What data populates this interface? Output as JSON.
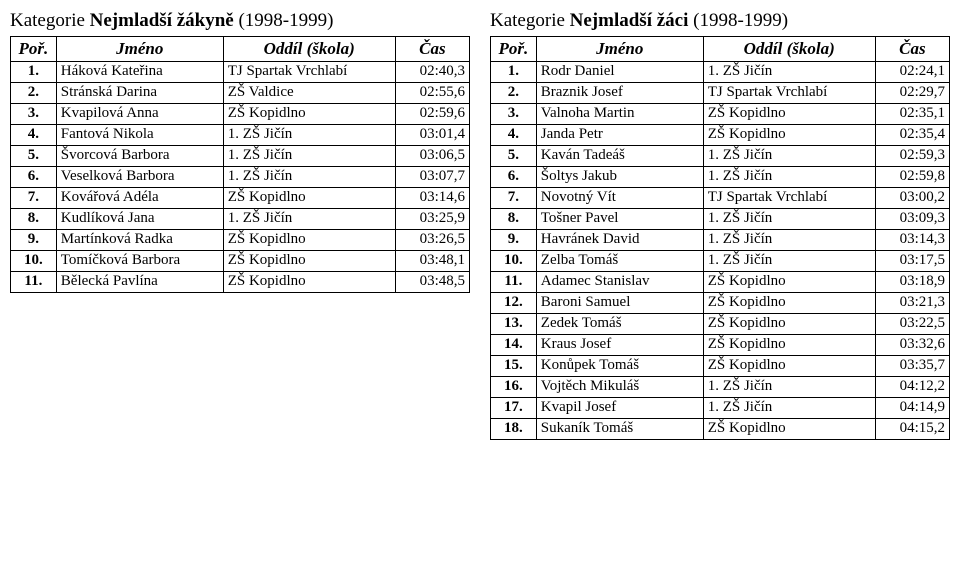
{
  "left": {
    "title_prefix": "Kategorie ",
    "title_bold": "Nejmladší žákyně",
    "title_suffix": " (1998-1999)",
    "headers": {
      "rank": "Poř.",
      "name": "Jméno",
      "club": "Oddíl (škola)",
      "time": "Čas"
    },
    "rows": [
      {
        "rank": "1.",
        "name": "Háková Kateřina",
        "club": "TJ Spartak Vrchlabí",
        "time": "02:40,3"
      },
      {
        "rank": "2.",
        "name": "Stránská Darina",
        "club": "ZŠ Valdice",
        "time": "02:55,6"
      },
      {
        "rank": "3.",
        "name": "Kvapilová Anna",
        "club": "ZŠ Kopidlno",
        "time": "02:59,6"
      },
      {
        "rank": "4.",
        "name": "Fantová Nikola",
        "club": "1. ZŠ Jičín",
        "time": "03:01,4"
      },
      {
        "rank": "5.",
        "name": "Švorcová Barbora",
        "club": "1. ZŠ Jičín",
        "time": "03:06,5"
      },
      {
        "rank": "6.",
        "name": "Veselková Barbora",
        "club": "1. ZŠ Jičín",
        "time": "03:07,7"
      },
      {
        "rank": "7.",
        "name": "Kovářová Adéla",
        "club": "ZŠ Kopidlno",
        "time": "03:14,6"
      },
      {
        "rank": "8.",
        "name": "Kudlíková Jana",
        "club": "1. ZŠ Jičín",
        "time": "03:25,9"
      },
      {
        "rank": "9.",
        "name": "Martínková Radka",
        "club": "ZŠ Kopidlno",
        "time": "03:26,5"
      },
      {
        "rank": "10.",
        "name": "Tomíčková Barbora",
        "club": "ZŠ Kopidlno",
        "time": "03:48,1"
      },
      {
        "rank": "11.",
        "name": "Bělecká Pavlína",
        "club": "ZŠ Kopidlno",
        "time": "03:48,5"
      }
    ]
  },
  "right": {
    "title_prefix": "Kategorie ",
    "title_bold": "Nejmladší žáci",
    "title_suffix": " (1998-1999)",
    "headers": {
      "rank": "Poř.",
      "name": "Jméno",
      "club": "Oddíl (škola)",
      "time": "Čas"
    },
    "rows": [
      {
        "rank": "1.",
        "name": "Rodr Daniel",
        "club": "1. ZŠ Jičín",
        "time": "02:24,1"
      },
      {
        "rank": "2.",
        "name": "Braznik Josef",
        "club": "TJ Spartak Vrchlabí",
        "time": "02:29,7"
      },
      {
        "rank": "3.",
        "name": "Valnoha Martin",
        "club": "ZŠ Kopidlno",
        "time": "02:35,1"
      },
      {
        "rank": "4.",
        "name": "Janda Petr",
        "club": "ZŠ Kopidlno",
        "time": "02:35,4"
      },
      {
        "rank": "5.",
        "name": "Kaván Tadeáš",
        "club": "1. ZŠ Jičín",
        "time": "02:59,3"
      },
      {
        "rank": "6.",
        "name": "Šoltys Jakub",
        "club": "1. ZŠ Jičín",
        "time": "02:59,8"
      },
      {
        "rank": "7.",
        "name": "Novotný Vít",
        "club": "TJ Spartak Vrchlabí",
        "time": "03:00,2"
      },
      {
        "rank": "8.",
        "name": "Tošner Pavel",
        "club": "1. ZŠ Jičín",
        "time": "03:09,3"
      },
      {
        "rank": "9.",
        "name": "Havránek David",
        "club": "1. ZŠ Jičín",
        "time": "03:14,3"
      },
      {
        "rank": "10.",
        "name": "Zelba Tomáš",
        "club": "1. ZŠ Jičín",
        "time": "03:17,5"
      },
      {
        "rank": "11.",
        "name": "Adamec Stanislav",
        "club": "ZŠ Kopidlno",
        "time": "03:18,9"
      },
      {
        "rank": "12.",
        "name": "Baroni Samuel",
        "club": "ZŠ Kopidlno",
        "time": "03:21,3"
      },
      {
        "rank": "13.",
        "name": "Zedek Tomáš",
        "club": "ZŠ Kopidlno",
        "time": "03:22,5"
      },
      {
        "rank": "14.",
        "name": "Kraus Josef",
        "club": "ZŠ Kopidlno",
        "time": "03:32,6"
      },
      {
        "rank": "15.",
        "name": "Konůpek Tomáš",
        "club": "ZŠ Kopidlno",
        "time": "03:35,7"
      },
      {
        "rank": "16.",
        "name": "Vojtěch Mikuláš",
        "club": "1. ZŠ Jičín",
        "time": "04:12,2"
      },
      {
        "rank": "17.",
        "name": "Kvapil Josef",
        "club": "1. ZŠ Jičín",
        "time": "04:14,9"
      },
      {
        "rank": "18.",
        "name": "Sukaník Tomáš",
        "club": "ZŠ Kopidlno",
        "time": "04:15,2"
      }
    ]
  }
}
